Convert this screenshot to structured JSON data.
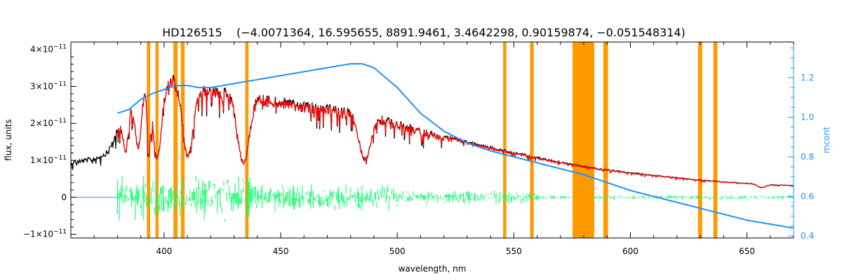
{
  "chart_data": {
    "type": "line",
    "title": "HD126515    (−4.0071364, 16.595655, 8891.9461, 3.4642298, 0.90159874, −0.051548314)",
    "xlabel": "wavelength, nm",
    "ylabel_left": "flux, units",
    "ylabel_right": "mcont",
    "xlim": [
      360,
      670
    ],
    "ylim_left": [
      -1.1e-11,
      4.2e-11
    ],
    "ylim_right": [
      0.39,
      1.38
    ],
    "grid": false,
    "legend": "none",
    "x_ticks": [
      {
        "value": 400,
        "label": "400"
      },
      {
        "value": 450,
        "label": "450"
      },
      {
        "value": 500,
        "label": "500"
      },
      {
        "value": 550,
        "label": "550"
      },
      {
        "value": 600,
        "label": "600"
      },
      {
        "value": 650,
        "label": "650"
      }
    ],
    "y_left_ticks": [
      {
        "value": -1e-11,
        "base": "−1×10",
        "exp": "−11"
      },
      {
        "value": 0,
        "base": "0",
        "exp": ""
      },
      {
        "value": 1e-11,
        "base": "1×10",
        "exp": "−11"
      },
      {
        "value": 2e-11,
        "base": "2×10",
        "exp": "−11"
      },
      {
        "value": 3e-11,
        "base": "3×10",
        "exp": "−11"
      },
      {
        "value": 4e-11,
        "base": "4×10",
        "exp": "−11"
      }
    ],
    "y_right_ticks": [
      {
        "value": 0.4,
        "label": "0.4"
      },
      {
        "value": 0.6,
        "label": "0.6"
      },
      {
        "value": 0.8,
        "label": "0.8"
      },
      {
        "value": 1.0,
        "label": "1.0"
      },
      {
        "value": 1.2,
        "label": "1.2"
      }
    ],
    "masked_regions": [
      [
        392.6,
        394.0
      ],
      [
        396.3,
        397.6
      ],
      [
        404.0,
        405.8
      ],
      [
        407.2,
        408.8
      ],
      [
        434.8,
        436.2
      ],
      [
        545.4,
        546.8
      ],
      [
        557.0,
        558.5
      ],
      [
        575.2,
        584.5
      ],
      [
        588.4,
        590.4
      ],
      [
        629.0,
        630.8
      ],
      [
        635.6,
        637.3
      ]
    ],
    "colors": {
      "observed": "#000000",
      "model": "#ff0000",
      "residual": "#00ff66",
      "continuum": "#1e90ff",
      "mask": "#ff9900",
      "right_axis": "#1e90ff"
    },
    "series": [
      {
        "role": "observed",
        "continuum_x": [
          360,
          370,
          376,
          380,
          385,
          388,
          390,
          393,
          395,
          398,
          400,
          403,
          405,
          408,
          410,
          415,
          420,
          425,
          430,
          435,
          440,
          445,
          450,
          460,
          470,
          480,
          484,
          485,
          488,
          490,
          500,
          510,
          520,
          530,
          540,
          550,
          560,
          570,
          580,
          590,
          600,
          610,
          620,
          630,
          640,
          650,
          660,
          670
        ],
        "continuum_y": [
          1e-11,
          1.1e-11,
          1.3e-11,
          1.9e-11,
          2.6e-11,
          3.1e-11,
          3.3e-11,
          3.4e-11,
          3.3e-11,
          3.1e-11,
          3.25e-11,
          3.4e-11,
          3.3e-11,
          3e-11,
          2.95e-11,
          3.1e-11,
          3.1e-11,
          3e-11,
          2.9e-11,
          2.85e-11,
          2.85e-11,
          2.75e-11,
          2.7e-11,
          2.6e-11,
          2.52e-11,
          2.43e-11,
          2.4e-11,
          2.45e-11,
          2.36e-11,
          2.3e-11,
          2.08e-11,
          1.88e-11,
          1.7e-11,
          1.53e-11,
          1.38e-11,
          1.24e-11,
          1.1e-11,
          9.7e-12,
          8.5e-12,
          7.6e-12,
          6.8e-12,
          6.1e-12,
          5.4e-12,
          4.8e-12,
          4.3e-12,
          3.9e-12,
          3.5e-12,
          3.3e-12
        ],
        "absorption_lines": [
          {
            "center": 383.5,
            "depth": 0.45,
            "width": 1.5
          },
          {
            "center": 388.9,
            "depth": 0.55,
            "width": 2.0
          },
          {
            "center": 393.4,
            "depth": 0.6,
            "width": 1.0
          },
          {
            "center": 397.0,
            "depth": 0.65,
            "width": 2.5
          },
          {
            "center": 410.2,
            "depth": 0.6,
            "width": 3.0
          },
          {
            "center": 434.0,
            "depth": 0.65,
            "width": 3.5
          },
          {
            "center": 486.1,
            "depth": 0.55,
            "width": 3.5
          },
          {
            "center": 656.3,
            "depth": 0.25,
            "width": 2.5
          }
        ]
      },
      {
        "role": "continuum",
        "x": [
          380,
          385,
          390,
          395,
          400,
          405,
          410,
          415,
          420,
          425,
          430,
          435,
          440,
          450,
          460,
          470,
          480,
          485,
          490,
          500,
          510,
          520,
          530,
          540,
          550,
          560,
          570,
          580,
          590,
          600,
          610,
          620,
          630,
          640,
          650,
          660,
          670
        ],
        "y": [
          1.02,
          1.04,
          1.09,
          1.12,
          1.14,
          1.16,
          1.16,
          1.15,
          1.15,
          1.16,
          1.17,
          1.18,
          1.19,
          1.21,
          1.23,
          1.25,
          1.27,
          1.27,
          1.25,
          1.15,
          1.02,
          0.93,
          0.87,
          0.83,
          0.8,
          0.77,
          0.74,
          0.71,
          0.67,
          0.63,
          0.6,
          0.57,
          0.54,
          0.51,
          0.48,
          0.46,
          0.44
        ]
      },
      {
        "role": "residual",
        "x_range": [
          380,
          670
        ],
        "amplitude_by_region": [
          {
            "from": 380,
            "to": 440,
            "amplitude": 5e-12
          },
          {
            "from": 440,
            "to": 500,
            "amplitude": 3e-12
          },
          {
            "from": 500,
            "to": 560,
            "amplitude": 1.5e-12
          },
          {
            "from": 560,
            "to": 670,
            "amplitude": 5e-13
          }
        ]
      }
    ]
  }
}
